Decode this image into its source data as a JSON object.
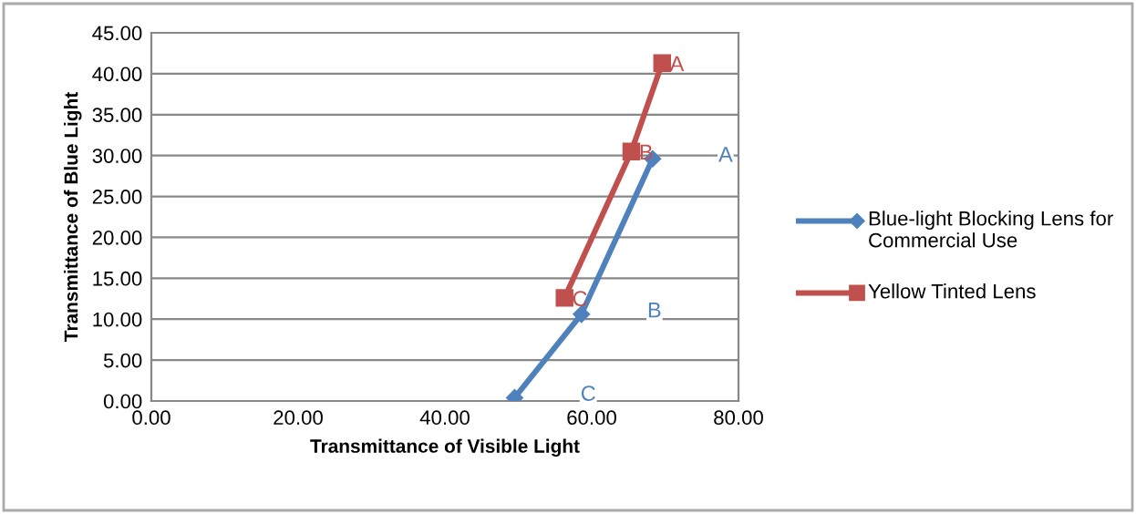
{
  "chart_data": {
    "type": "line",
    "xlabel": "Transmittance of Visible Light",
    "ylabel": "Transmittance of Blue Light",
    "series": [
      {
        "name": "Blue-light Blocking Lens for Commercial Use",
        "color": "#4f81bd",
        "marker": "diamond",
        "x": [
          49.5,
          58.6,
          68.3
        ],
        "values": [
          0.4,
          10.6,
          29.6
        ]
      },
      {
        "name": "Yellow Tinted Lens",
        "color": "#c0504d",
        "marker": "square",
        "x": [
          56.3,
          65.4,
          69.6
        ],
        "values": [
          12.6,
          30.5,
          41.3
        ]
      }
    ],
    "annotations": [
      "A",
      "B",
      "C",
      {
        "text": "A",
        "x": 69.6,
        "y": 41.3
      },
      {
        "text": "B",
        "x": 65.4,
        "y": 30.5
      },
      {
        "text": "C",
        "x": 56.3,
        "y": 12.6
      }
    ],
    "xlim": [
      0,
      80
    ],
    "xticks": [
      {
        "value": 0,
        "label": "0.00"
      },
      {
        "value": 20,
        "label": "20.00"
      },
      {
        "value": 40,
        "label": "40.00"
      },
      {
        "value": 60,
        "label": "60.00"
      },
      {
        "value": 80,
        "label": "80.00"
      }
    ],
    "ylim": [
      0,
      45
    ],
    "yticks": [
      {
        "value": 0,
        "label": "0.00"
      },
      {
        "value": 5,
        "label": "5.00"
      },
      {
        "value": 10,
        "label": "10.00"
      },
      {
        "value": 15,
        "label": "15.00"
      },
      {
        "value": 20,
        "label": "20.00"
      },
      {
        "value": 25,
        "label": "25.00"
      },
      {
        "value": 30,
        "label": "30.00"
      },
      {
        "value": 35,
        "label": "35.00"
      },
      {
        "value": 40,
        "label": "40.00"
      },
      {
        "value": 45,
        "label": "45.00"
      }
    ],
    "grid": "y",
    "legend": "right"
  }
}
